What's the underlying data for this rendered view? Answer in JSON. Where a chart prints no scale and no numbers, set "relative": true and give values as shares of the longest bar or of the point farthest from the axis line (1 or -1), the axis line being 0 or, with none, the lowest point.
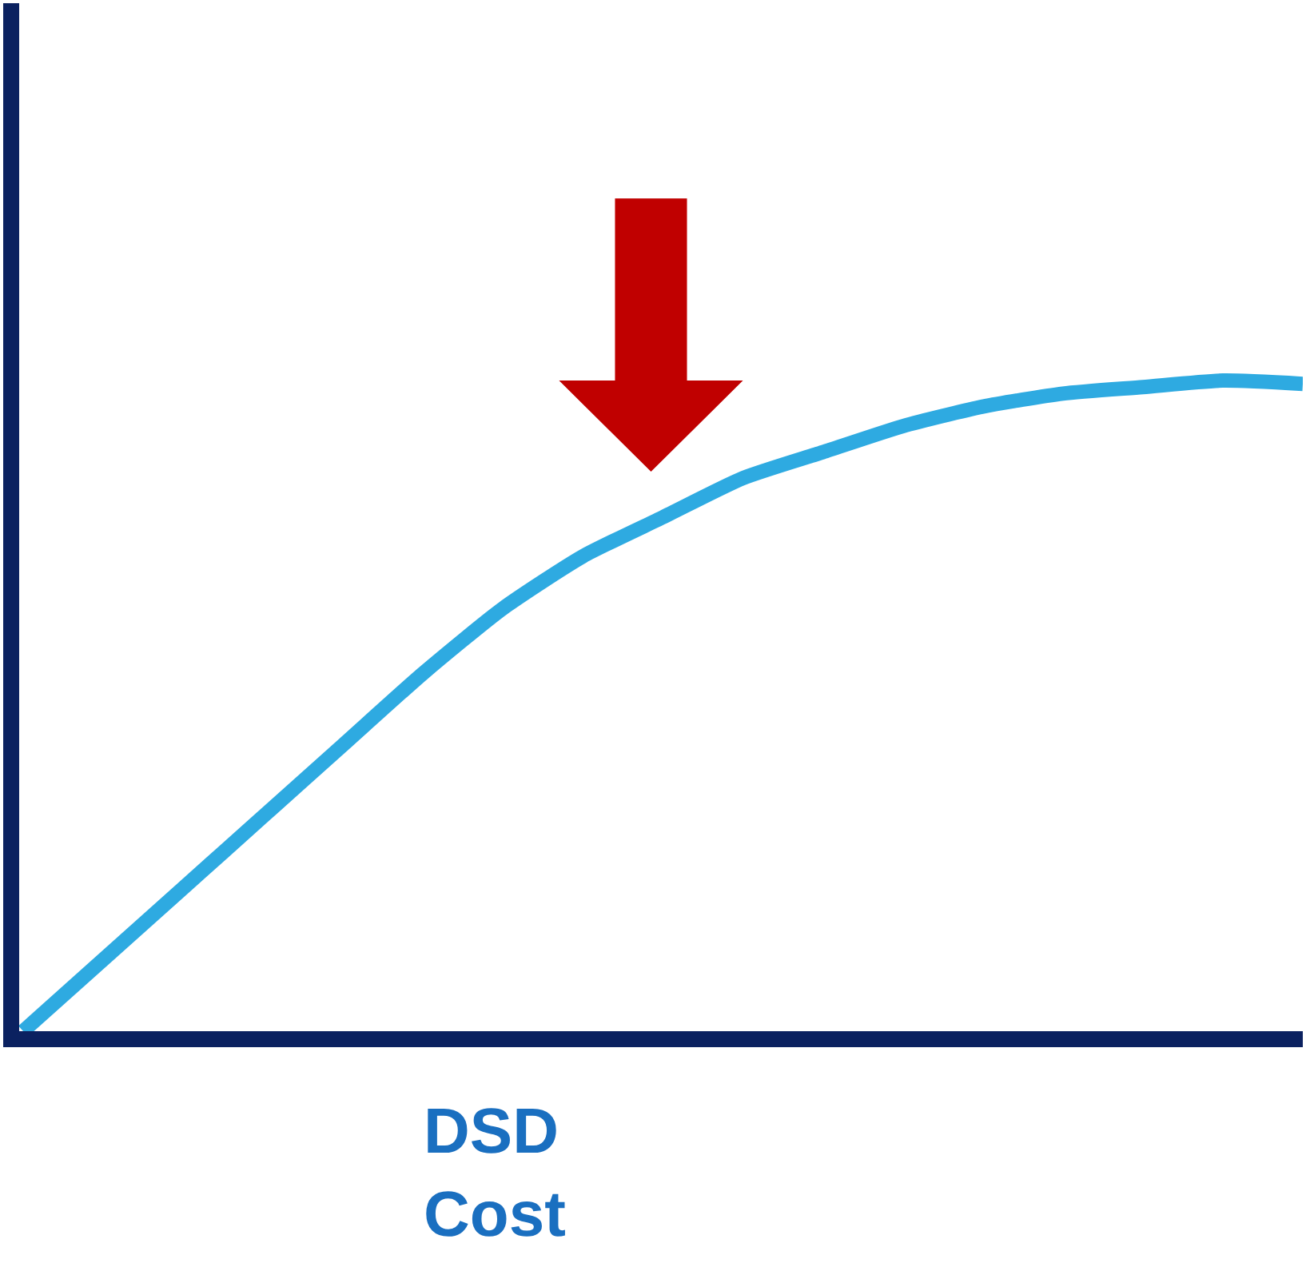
{
  "chart_data": {
    "type": "line",
    "relative": true,
    "xlabel": "DSD\nCost",
    "categories": [
      null,
      null,
      null,
      null,
      null,
      null,
      null,
      null,
      null,
      null,
      null,
      null,
      null,
      null,
      null,
      null,
      null
    ],
    "series": [
      {
        "color": "#2eaae1",
        "values": [
          0,
          0.11,
          0.22,
          0.33,
          0.44,
          0.55,
          0.65,
          0.73,
          0.79,
          0.85,
          0.89,
          0.93,
          0.96,
          0.98,
          0.99,
          1.0,
          0.995
        ]
      }
    ],
    "marker": "none",
    "line_style": "solid"
  }
}
